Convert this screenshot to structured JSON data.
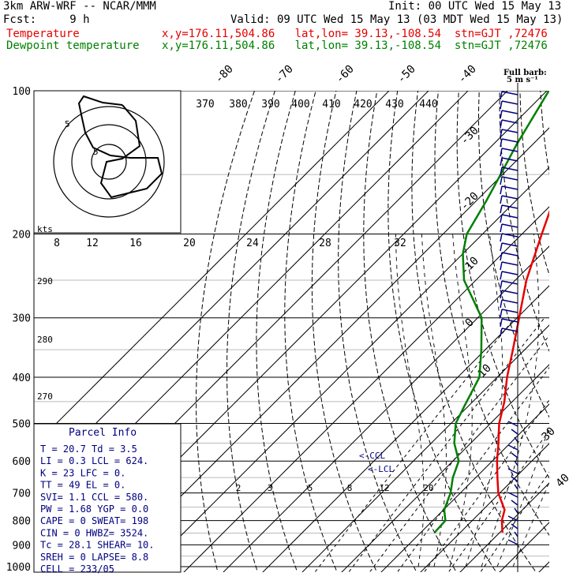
{
  "header": {
    "model": "3km ARW-WRF -- NCAR/MMM",
    "init": "Init: 00 UTC Wed 15 May 13",
    "fcst": "Fcst:     9 h",
    "valid": "Valid: 09 UTC Wed 15 May 13 (03 MDT Wed 15 May 13)",
    "temp_label": "Temperature",
    "temp_loc": "x,y=176.11,504.86   lat,lon= 39.13,-108.54  stn=GJT ,72476",
    "dew_label": "Dewpoint temperature",
    "dew_loc": "x,y=176.11,504.86   lat,lon= 39.13,-108.54  stn=GJT ,72476"
  },
  "colors": {
    "temperature": "#e60000",
    "dewpoint": "#008000",
    "info": "#000080"
  },
  "barb_legend": {
    "line1": "Full barb:",
    "line2": "5 m s⁻¹"
  },
  "hodograph": {
    "units": "kts",
    "ring_labels": [
      "5",
      "5"
    ]
  },
  "parcel_info": {
    "title": "Parcel Info",
    "rows": [
      "T  =   20.7  Td =   3.5",
      "LI =    0.3  LCL =  624.",
      "K  =     23  LFC =    0.",
      "TT =     49  EL  =    0.",
      "SVI=    1.1  CCL =  580.",
      "PW =   1.68  YGP =   0.0",
      "CAPE =    0  SWEAT=  198",
      "CIN =     0  HWBZ= 3524.",
      "Tc =   28.1  SHEAR=  10.",
      "SREH =    0  LAPSE=  8.8",
      "CELL = 233/05"
    ]
  },
  "annotations": {
    "ccl": "<-CCL",
    "lcl": "<-LCL"
  },
  "chart_data": {
    "type": "line",
    "title": "",
    "pressure_levels_hPa": [
      100,
      200,
      300,
      400,
      500,
      600,
      700,
      800,
      900,
      1000
    ],
    "pressure_labels": [
      "100",
      "200",
      "300",
      "400",
      "500",
      "600",
      "700",
      "800",
      "900",
      "1000"
    ],
    "skewed_isotherm_labels_C": [
      "-80",
      "-70",
      "-60",
      "-50",
      "-40",
      "-30",
      "-20",
      "-10",
      "0",
      "10",
      "20",
      "30",
      "40"
    ],
    "theta_labels_K": [
      "370",
      "380",
      "390",
      "400",
      "410",
      "420",
      "430",
      "440"
    ],
    "mixing_ratio_labels": [
      "8",
      "12",
      "16",
      "20",
      "24",
      "28",
      "32"
    ],
    "mixing_ratio_lower_labels": [
      "2",
      "3",
      "5",
      "8",
      "12",
      "20"
    ],
    "dry_adiabat_left_labels": [
      "290",
      "280",
      "270"
    ],
    "series": [
      {
        "name": "Temperature",
        "color": "#e60000",
        "points": [
          [
            848,
            20.7
          ],
          [
            800,
            17.5
          ],
          [
            760,
            15.5
          ],
          [
            700,
            9.6
          ],
          [
            650,
            5.5
          ],
          [
            600,
            1.2
          ],
          [
            550,
            -3.0
          ],
          [
            500,
            -7.8
          ],
          [
            450,
            -12.0
          ],
          [
            400,
            -17.5
          ],
          [
            350,
            -23.0
          ],
          [
            300,
            -29.5
          ],
          [
            250,
            -37.2
          ],
          [
            200,
            -45.0
          ],
          [
            170,
            -50.5
          ],
          [
            150,
            -52.8
          ],
          [
            130,
            -55.0
          ],
          [
            115,
            -58.5
          ],
          [
            100,
            -62.5
          ]
        ]
      },
      {
        "name": "Dewpoint temperature",
        "color": "#008000",
        "points": [
          [
            848,
            3.5
          ],
          [
            800,
            3.2
          ],
          [
            760,
            0.2
          ],
          [
            700,
            -2.5
          ],
          [
            650,
            -5.8
          ],
          [
            600,
            -8.5
          ],
          [
            550,
            -14.2
          ],
          [
            500,
            -18.8
          ],
          [
            460,
            -21.0
          ],
          [
            400,
            -24.5
          ],
          [
            350,
            -31.0
          ],
          [
            300,
            -39.0
          ],
          [
            250,
            -53.0
          ],
          [
            220,
            -60.0
          ],
          [
            200,
            -64.0
          ],
          [
            170,
            -67.5
          ],
          [
            150,
            -70.5
          ],
          [
            130,
            -74.0
          ],
          [
            100,
            -79.5
          ]
        ]
      }
    ],
    "hodograph_track": [
      [
        155,
        133
      ],
      [
        172,
        153
      ],
      [
        177,
        185
      ],
      [
        155,
        201
      ],
      [
        135,
        205
      ],
      [
        128,
        232
      ],
      [
        141,
        250
      ],
      [
        186,
        239
      ],
      [
        205,
        220
      ],
      [
        200,
        200
      ],
      [
        165,
        200
      ],
      [
        140,
        197
      ],
      [
        118,
        187
      ],
      [
        108,
        168
      ],
      [
        104,
        150
      ],
      [
        100,
        131
      ],
      [
        106,
        122
      ],
      [
        130,
        130
      ],
      [
        155,
        133
      ]
    ]
  }
}
